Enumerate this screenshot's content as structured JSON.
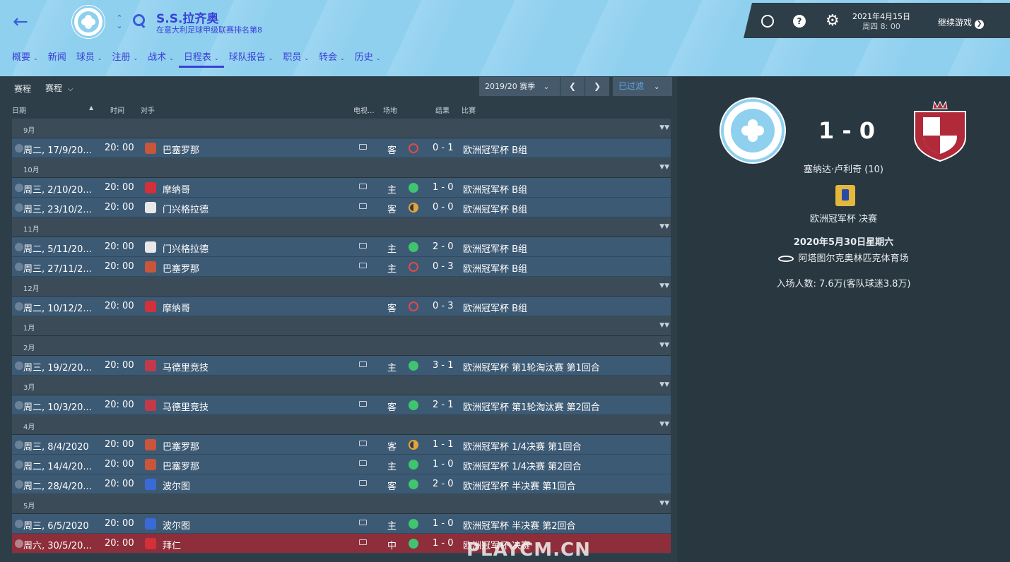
{
  "header": {
    "club_name": "S.S.拉齐奥",
    "club_subtitle": "在意大利足球甲级联赛排名第8",
    "date_line1": "2021年4月15日",
    "date_line2": "周四 8: 00",
    "continue_label": "继续游戏",
    "accent": "#3a3fd8",
    "bg": "#8fd0ef"
  },
  "nav": [
    "概要",
    "新闻",
    "球员",
    "注册",
    "战术",
    "日程表",
    "球队报告",
    "职员",
    "转会",
    "历史"
  ],
  "nav_active": "日程表",
  "filters": {
    "label": "赛程",
    "select": "赛程",
    "season": "2019/20 赛季",
    "filter_btn": "已过滤"
  },
  "columns": {
    "date": "日期",
    "time": "时间",
    "opponent": "对手",
    "tv": "电视...",
    "venue": "场地",
    "result": "结果",
    "competition": "比赛"
  },
  "fixtures": [
    {
      "month": "9月"
    },
    {
      "date": "周二, 17/9/20...",
      "time": "20: 00",
      "opp": "巴塞罗那",
      "venue": "客",
      "res": "L",
      "score": "0 - 1",
      "comp": "欧洲冠军杯 B组",
      "tv": true
    },
    {
      "month": "10月"
    },
    {
      "date": "周三, 2/10/20...",
      "time": "20: 00",
      "opp": "摩纳哥",
      "venue": "主",
      "res": "W",
      "score": "1 - 0",
      "comp": "欧洲冠军杯 B组",
      "tv": true
    },
    {
      "date": "周三, 23/10/2...",
      "time": "20: 00",
      "opp": "门兴格拉德",
      "venue": "客",
      "res": "D",
      "score": "0 - 0",
      "comp": "欧洲冠军杯 B组",
      "tv": true
    },
    {
      "month": "11月"
    },
    {
      "date": "周二, 5/11/20...",
      "time": "20: 00",
      "opp": "门兴格拉德",
      "venue": "主",
      "res": "W",
      "score": "2 - 0",
      "comp": "欧洲冠军杯 B组",
      "tv": true
    },
    {
      "date": "周三, 27/11/2...",
      "time": "20: 00",
      "opp": "巴塞罗那",
      "venue": "主",
      "res": "L",
      "score": "0 - 3",
      "comp": "欧洲冠军杯 B组",
      "tv": true
    },
    {
      "month": "12月"
    },
    {
      "date": "周二, 10/12/2...",
      "time": "20: 00",
      "opp": "摩纳哥",
      "venue": "客",
      "res": "L",
      "score": "0 - 3",
      "comp": "欧洲冠军杯 B组",
      "tv": false
    },
    {
      "month": "1月"
    },
    {
      "month": "2月"
    },
    {
      "date": "周三, 19/2/20...",
      "time": "20: 00",
      "opp": "马德里竞技",
      "venue": "主",
      "res": "W",
      "score": "3 - 1",
      "comp": "欧洲冠军杯 第1轮淘汰赛 第1回合",
      "tv": true
    },
    {
      "month": "3月"
    },
    {
      "date": "周二, 10/3/20...",
      "time": "20: 00",
      "opp": "马德里竞技",
      "venue": "客",
      "res": "W",
      "score": "2 - 1",
      "comp": "欧洲冠军杯 第1轮淘汰赛 第2回合",
      "tv": true
    },
    {
      "month": "4月"
    },
    {
      "date": "周三, 8/4/2020",
      "time": "20: 00",
      "opp": "巴塞罗那",
      "venue": "客",
      "res": "D",
      "score": "1 - 1",
      "comp": "欧洲冠军杯 1/4决赛 第1回合",
      "tv": true
    },
    {
      "date": "周二, 14/4/20...",
      "time": "20: 00",
      "opp": "巴塞罗那",
      "venue": "主",
      "res": "W",
      "score": "1 - 0",
      "comp": "欧洲冠军杯 1/4决赛 第2回合",
      "tv": true
    },
    {
      "date": "周二, 28/4/20...",
      "time": "20: 00",
      "opp": "波尔图",
      "venue": "客",
      "res": "W",
      "score": "2 - 0",
      "comp": "欧洲冠军杯 半决赛 第1回合",
      "tv": true
    },
    {
      "month": "5月"
    },
    {
      "date": "周三, 6/5/2020",
      "time": "20: 00",
      "opp": "波尔图",
      "venue": "主",
      "res": "W",
      "score": "1 - 0",
      "comp": "欧洲冠军杯 半决赛 第2回合",
      "tv": true
    },
    {
      "date": "周六, 30/5/20...",
      "time": "20: 00",
      "opp": "拜仁",
      "venue": "中",
      "res": "W",
      "score": "1 - 0",
      "comp": "欧洲冠军杯 决赛",
      "tv": true,
      "selected": true
    }
  ],
  "opp_colors": {
    "巴塞罗那": "#c9553a",
    "摩纳哥": "#d3303a",
    "门兴格拉德": "#e8e8e8",
    "马德里竞技": "#c23a4a",
    "波尔图": "#3a6ad8",
    "拜仁": "#d3303a"
  },
  "detail": {
    "score": "1 - 0",
    "scorer": "塞纳达·卢利奇 (10)",
    "competition": "欧洲冠军杯 决赛",
    "date": "2020年5月30日星期六",
    "stadium": "阿塔图尔克奥林匹克体育场",
    "attendance": "入场人数: 7.6万(客队球迷3.8万)"
  },
  "watermark": "PLAYCM.CN"
}
